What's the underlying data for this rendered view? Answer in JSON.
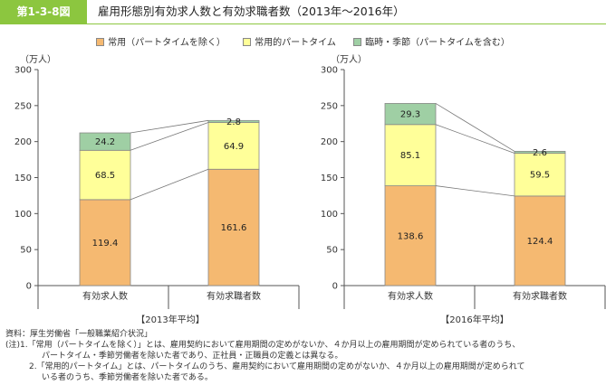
{
  "header": {
    "figure_label": "第1-3-8図",
    "title": "雇用形態別有効求人数と有効求職者数（2013年〜2016年）"
  },
  "legend": [
    {
      "label": "常用（パートタイムを除く）",
      "color": "#f5b971"
    },
    {
      "label": "常用的パートタイム",
      "color": "#ffff99"
    },
    {
      "label": "臨時・季節（パートタイムを含む）",
      "color": "#9fcfa4"
    }
  ],
  "chart_data": [
    {
      "type": "bar",
      "stacked": true,
      "unit_label": "（万人）",
      "ylim": [
        0,
        300
      ],
      "yticks": [
        "0",
        "50",
        "100",
        "150",
        "200",
        "250",
        "300"
      ],
      "categories": [
        "有効求人数",
        "有効求職者数"
      ],
      "period_label": "【2013年平均】",
      "series": [
        {
          "name": "常用（パートタイムを除く）",
          "values": [
            119.4,
            161.6
          ],
          "labels": [
            "119.4",
            "161.6"
          ]
        },
        {
          "name": "常用的パートタイム",
          "values": [
            68.5,
            64.9
          ],
          "labels": [
            "68.5",
            "64.9"
          ]
        },
        {
          "name": "臨時・季節（パートタイムを含む）",
          "values": [
            24.2,
            2.8
          ],
          "labels": [
            "24.2",
            "2.8"
          ]
        }
      ]
    },
    {
      "type": "bar",
      "stacked": true,
      "unit_label": "（万人）",
      "ylim": [
        0,
        300
      ],
      "yticks": [
        "0",
        "50",
        "100",
        "150",
        "200",
        "250",
        "300"
      ],
      "categories": [
        "有効求人数",
        "有効求職者数"
      ],
      "period_label": "【2016年平均】",
      "series": [
        {
          "name": "常用（パートタイムを除く）",
          "values": [
            138.6,
            124.4
          ],
          "labels": [
            "138.6",
            "124.4"
          ]
        },
        {
          "name": "常用的パートタイム",
          "values": [
            85.1,
            59.5
          ],
          "labels": [
            "85.1",
            "59.5"
          ]
        },
        {
          "name": "臨時・季節（パートタイムを含む）",
          "values": [
            29.3,
            2.6
          ],
          "labels": [
            "29.3",
            "2.6"
          ]
        }
      ]
    }
  ],
  "notes": {
    "source": "資料：厚生労働省「一般職業紹介状況」",
    "note1a": "(注)1.「常用（パートタイムを除く）」とは、雇用契約において雇用期間の定めがないか、４か月以上の雇用期間が定められている者のうち、",
    "note1b": "パートタイム・季節労働者を除いた者であり、正社員・正職員の定義とは異なる。",
    "note2a": "2.「常用的パートタイム」とは、パートタイムのうち、雇用契約において雇用期間の定めがないか、４か月以上の雇用期間が定められて",
    "note2b": "いる者のうち、季節労働者を除いた者である。"
  }
}
